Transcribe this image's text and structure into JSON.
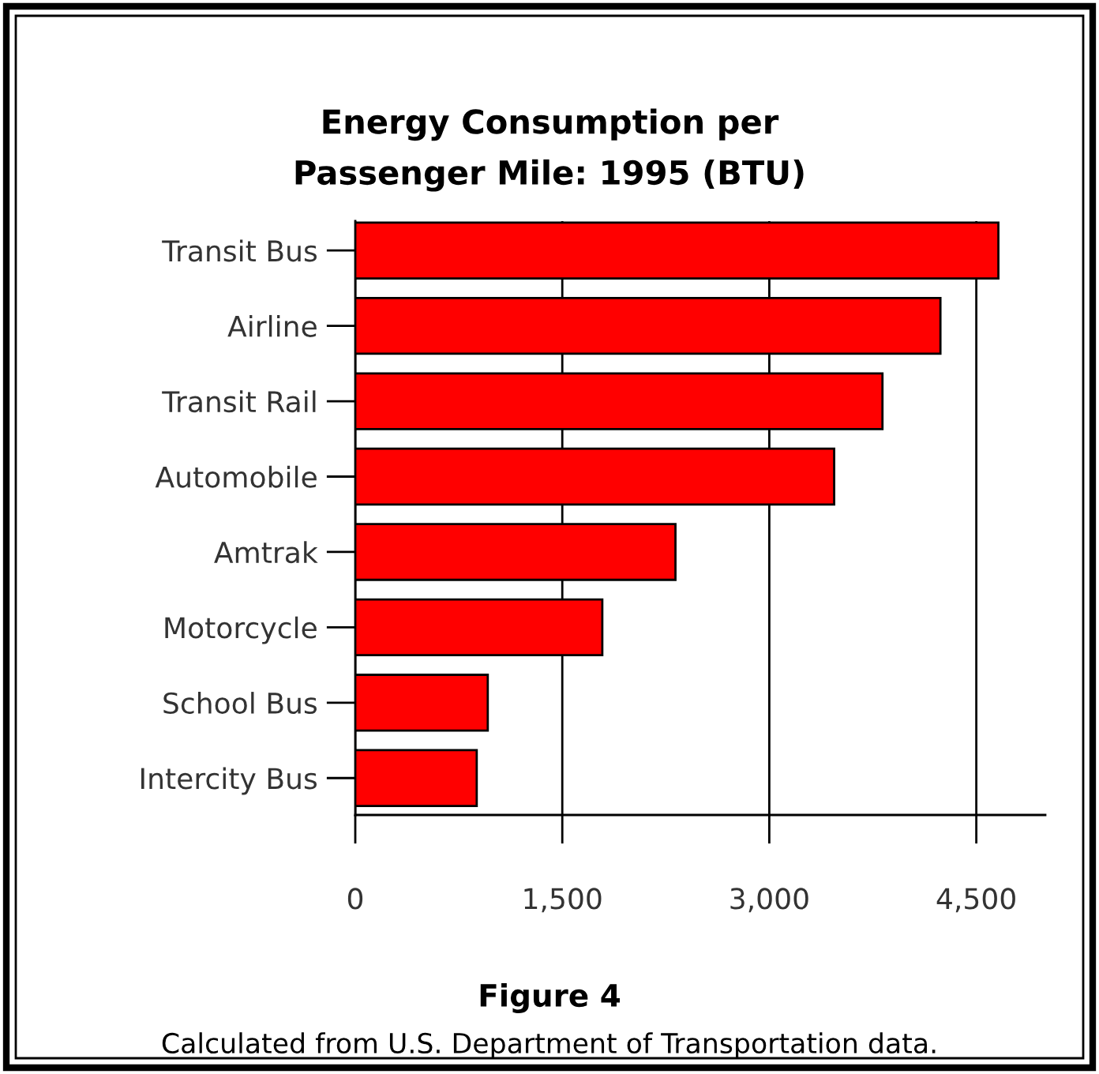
{
  "chart_data": {
    "type": "bar",
    "orientation": "horizontal",
    "title": "Energy Consumption per\nPassenger Mile: 1995 (BTU)",
    "categories": [
      "Transit Bus",
      "Airline",
      "Transit Rail",
      "Automobile",
      "Amtrak",
      "Motorcycle",
      "School Bus",
      "Intercity Bus"
    ],
    "values": [
      4660,
      4240,
      3820,
      3470,
      2320,
      1790,
      960,
      880
    ],
    "color": "#ff0000",
    "xlim": [
      0,
      5000
    ],
    "xticks": [
      0,
      {
        "value": 1500,
        "label": "1,500"
      },
      {
        "value": 3000,
        "label": "3,000"
      },
      {
        "value": 4500,
        "label": "4,500"
      }
    ],
    "grid": "x",
    "annotations": [
      "Figure 4",
      "Calculated from U.S. Department of Transportation data."
    ]
  }
}
